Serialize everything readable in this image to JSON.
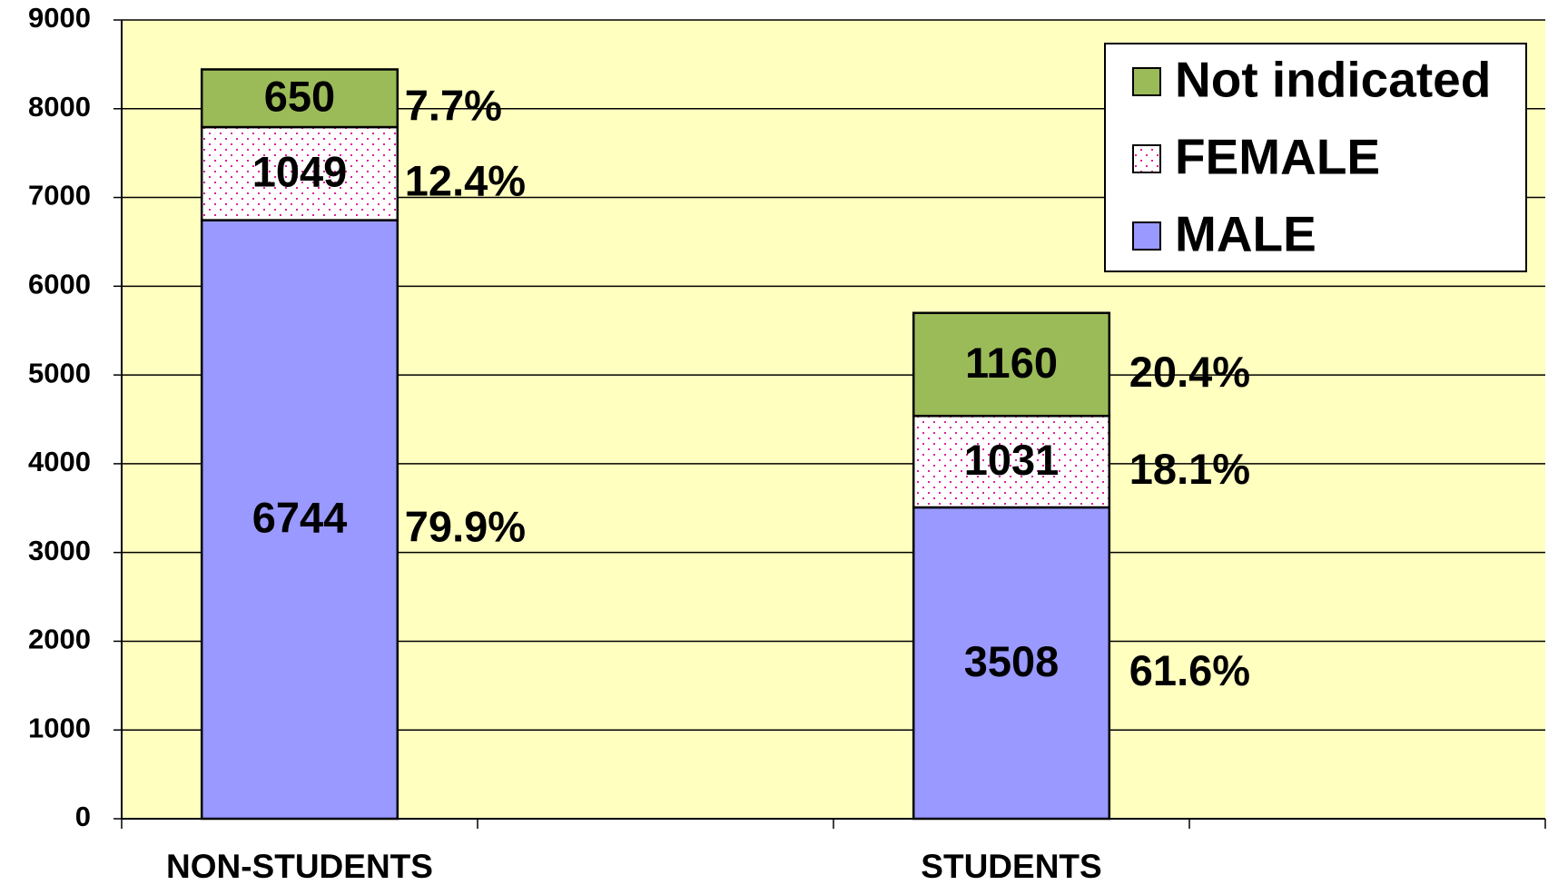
{
  "chart_data": {
    "type": "stacked_bar",
    "categories": [
      "NON-STUDENTS",
      null,
      "STUDENTS",
      null
    ],
    "series": [
      {
        "name": "MALE",
        "color": "#9999ff",
        "values": [
          6744,
          0,
          3508,
          0
        ],
        "share_labels": [
          "79.9%",
          null,
          "61.6%",
          null
        ]
      },
      {
        "name": "FEMALE",
        "color": "#ffffff",
        "pattern": "dots",
        "pattern_color": "#e0209a",
        "values": [
          1049,
          0,
          1031,
          0
        ],
        "share_labels": [
          "12.4%",
          null,
          "18.1%",
          null
        ]
      },
      {
        "name": "Not indicated",
        "color": "#9bbb59",
        "values": [
          650,
          0,
          1160,
          0
        ],
        "share_labels": [
          "7.7%",
          null,
          "20.4%",
          null
        ]
      }
    ],
    "ylim": [
      0,
      9000
    ],
    "yticks": [
      0,
      1000,
      2000,
      3000,
      4000,
      5000,
      6000,
      7000,
      8000,
      9000
    ],
    "grid": true,
    "legend": "upper right",
    "plot_background": "#ffffc0"
  }
}
